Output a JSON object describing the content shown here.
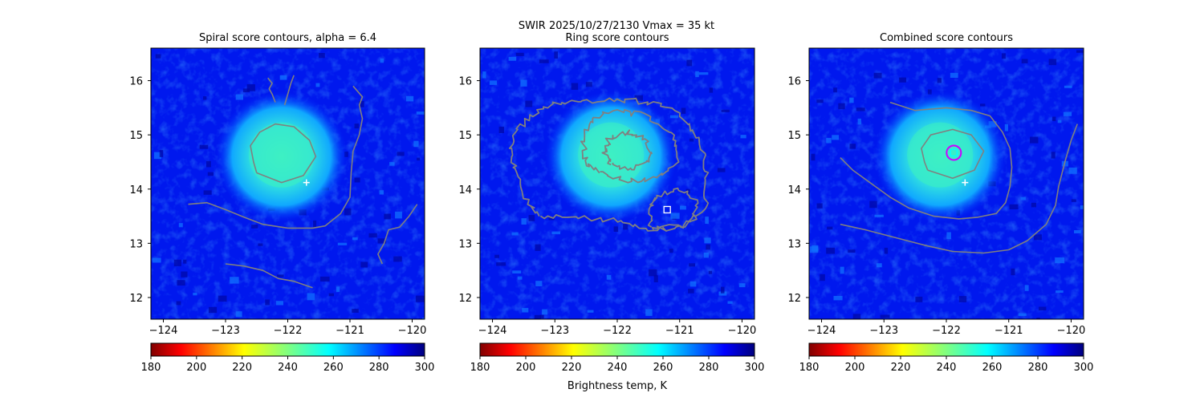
{
  "figure": {
    "suptitle_line1": "SWIR  2025/10/27/2130    Vmax = 35 kt",
    "colorbar_label": "Brightness temp, K"
  },
  "colors": {
    "contour": "#808080",
    "marker_square": "#ffffff",
    "marker_plus": "#ffffff",
    "combined_circle": "#cc00ff",
    "combined_square": "#00ffff"
  },
  "chart_data": [
    {
      "type": "heatmap",
      "title": "Spiral score contours, alpha =  6.4",
      "xlim": [
        -124.2,
        -119.8
      ],
      "ylim": [
        11.6,
        16.6
      ],
      "xticks": [
        -124,
        -123,
        -122,
        -121,
        -120
      ],
      "yticks": [
        12,
        13,
        14,
        15,
        16
      ],
      "colorbar": {
        "cmap": "jet_r",
        "range": [
          180,
          300
        ],
        "ticks": [
          180,
          200,
          220,
          240,
          260,
          280,
          300
        ]
      },
      "cloud_center": [
        -122.1,
        14.6
      ],
      "markers": [
        {
          "kind": "plus",
          "lon": -121.7,
          "lat": 14.12
        }
      ],
      "contours": [
        {
          "points": [
            [
              -122.5,
              14.3
            ],
            [
              -122.1,
              14.12
            ],
            [
              -121.75,
              14.25
            ],
            [
              -121.55,
              14.6
            ],
            [
              -121.65,
              14.9
            ],
            [
              -121.9,
              15.15
            ],
            [
              -122.2,
              15.2
            ],
            [
              -122.45,
              15.05
            ],
            [
              -122.6,
              14.8
            ],
            [
              -122.55,
              14.5
            ],
            [
              -122.5,
              14.3
            ]
          ]
        },
        {
          "points": [
            [
              -123.6,
              13.72
            ],
            [
              -123.3,
              13.75
            ],
            [
              -123.0,
              13.62
            ],
            [
              -122.7,
              13.48
            ],
            [
              -122.4,
              13.35
            ],
            [
              -122.0,
              13.28
            ],
            [
              -121.6,
              13.28
            ],
            [
              -121.4,
              13.32
            ],
            [
              -121.15,
              13.55
            ],
            [
              -121.0,
              13.85
            ],
            [
              -120.98,
              14.3
            ],
            [
              -120.95,
              14.7
            ],
            [
              -120.85,
              15.0
            ],
            [
              -120.8,
              15.3
            ],
            [
              -120.85,
              15.55
            ],
            [
              -120.8,
              15.7
            ],
            [
              -120.95,
              15.9
            ]
          ]
        },
        {
          "points": [
            [
              -122.2,
              15.6
            ],
            [
              -122.25,
              15.75
            ],
            [
              -122.3,
              15.85
            ],
            [
              -122.25,
              15.95
            ],
            [
              -122.32,
              16.05
            ]
          ]
        },
        {
          "points": [
            [
              -122.05,
              15.55
            ],
            [
              -122.0,
              15.75
            ],
            [
              -121.95,
              15.95
            ],
            [
              -121.9,
              16.1
            ]
          ]
        },
        {
          "points": [
            [
              -120.48,
              12.62
            ],
            [
              -120.55,
              12.8
            ],
            [
              -120.45,
              13.0
            ],
            [
              -120.38,
              13.25
            ],
            [
              -120.2,
              13.3
            ],
            [
              -120.05,
              13.5
            ],
            [
              -119.92,
              13.72
            ]
          ]
        },
        {
          "points": [
            [
              -123.0,
              12.62
            ],
            [
              -122.7,
              12.58
            ],
            [
              -122.4,
              12.5
            ],
            [
              -122.15,
              12.35
            ],
            [
              -121.9,
              12.3
            ],
            [
              -121.6,
              12.18
            ]
          ]
        }
      ]
    },
    {
      "type": "heatmap",
      "title": "Ring score contours",
      "xlim": [
        -124.2,
        -119.8
      ],
      "ylim": [
        11.6,
        16.6
      ],
      "xticks": [
        -124,
        -123,
        -122,
        -121,
        -120
      ],
      "yticks": [
        12,
        13,
        14,
        15,
        16
      ],
      "colorbar": {
        "cmap": "jet_r",
        "range": [
          180,
          300
        ],
        "ticks": [
          180,
          200,
          220,
          240,
          260,
          280,
          300
        ]
      },
      "cloud_center": [
        -122.1,
        14.6
      ],
      "markers": [
        {
          "kind": "square",
          "lon": -121.2,
          "lat": 13.62
        }
      ],
      "contours": [
        {
          "jagged": true,
          "points": [
            [
              -123.25,
              13.5
            ],
            [
              -122.8,
              13.5
            ],
            [
              -122.0,
              13.42
            ],
            [
              -121.5,
              13.25
            ],
            [
              -120.9,
              13.35
            ],
            [
              -120.6,
              13.6
            ],
            [
              -120.55,
              14.2
            ],
            [
              -120.65,
              14.8
            ],
            [
              -120.9,
              15.3
            ],
            [
              -121.4,
              15.6
            ],
            [
              -122.0,
              15.65
            ],
            [
              -122.6,
              15.6
            ],
            [
              -123.05,
              15.55
            ],
            [
              -123.45,
              15.3
            ],
            [
              -123.7,
              14.9
            ],
            [
              -123.65,
              14.4
            ],
            [
              -123.5,
              13.9
            ],
            [
              -123.25,
              13.5
            ]
          ]
        },
        {
          "jagged": true,
          "points": [
            [
              -122.3,
              14.3
            ],
            [
              -121.8,
              14.15
            ],
            [
              -121.35,
              14.2
            ],
            [
              -121.05,
              14.55
            ],
            [
              -121.1,
              15.0
            ],
            [
              -121.5,
              15.35
            ],
            [
              -122.0,
              15.45
            ],
            [
              -122.4,
              15.3
            ],
            [
              -122.55,
              14.9
            ],
            [
              -122.5,
              14.5
            ],
            [
              -122.3,
              14.3
            ]
          ]
        },
        {
          "jagged": true,
          "points": [
            [
              -122.1,
              14.45
            ],
            [
              -121.75,
              14.35
            ],
            [
              -121.45,
              14.55
            ],
            [
              -121.55,
              14.9
            ],
            [
              -121.85,
              15.05
            ],
            [
              -122.15,
              14.9
            ],
            [
              -122.2,
              14.65
            ],
            [
              -122.1,
              14.45
            ]
          ]
        },
        {
          "jagged": true,
          "points": [
            [
              -121.45,
              13.3
            ],
            [
              -121.1,
              13.25
            ],
            [
              -120.75,
              13.45
            ],
            [
              -120.75,
              13.8
            ],
            [
              -121.0,
              14.0
            ],
            [
              -121.35,
              13.9
            ],
            [
              -121.5,
              13.6
            ],
            [
              -121.45,
              13.3
            ]
          ]
        }
      ]
    },
    {
      "type": "heatmap",
      "title": "Combined score contours",
      "xlim": [
        -124.2,
        -119.8
      ],
      "ylim": [
        11.6,
        16.6
      ],
      "xticks": [
        -124,
        -123,
        -122,
        -121,
        -120
      ],
      "yticks": [
        12,
        13,
        14,
        15,
        16
      ],
      "colorbar": {
        "cmap": "jet_r",
        "range": [
          180,
          300
        ],
        "ticks": [
          180,
          200,
          220,
          240,
          260,
          280,
          300
        ]
      },
      "cloud_center": [
        -122.1,
        14.6
      ],
      "markers": [
        {
          "kind": "plus",
          "lon": -121.7,
          "lat": 14.12
        },
        {
          "kind": "circle",
          "lon": -121.88,
          "lat": 14.67
        },
        {
          "kind": "square",
          "lon": -121.88,
          "lat": 14.67
        }
      ],
      "contours": [
        {
          "points": [
            [
              -122.3,
              14.35
            ],
            [
              -121.9,
              14.2
            ],
            [
              -121.55,
              14.35
            ],
            [
              -121.4,
              14.7
            ],
            [
              -121.6,
              15.0
            ],
            [
              -121.9,
              15.1
            ],
            [
              -122.25,
              15.0
            ],
            [
              -122.4,
              14.75
            ],
            [
              -122.35,
              14.5
            ],
            [
              -122.3,
              14.35
            ]
          ]
        },
        {
          "points": [
            [
              -123.7,
              14.58
            ],
            [
              -123.5,
              14.35
            ],
            [
              -123.2,
              14.1
            ],
            [
              -122.9,
              13.85
            ],
            [
              -122.6,
              13.65
            ],
            [
              -122.2,
              13.5
            ],
            [
              -121.8,
              13.45
            ],
            [
              -121.5,
              13.48
            ],
            [
              -121.2,
              13.55
            ],
            [
              -121.05,
              13.75
            ],
            [
              -120.98,
              14.05
            ],
            [
              -120.95,
              14.4
            ],
            [
              -120.98,
              14.75
            ],
            [
              -121.1,
              15.05
            ],
            [
              -121.3,
              15.35
            ],
            [
              -121.6,
              15.45
            ],
            [
              -122.0,
              15.5
            ],
            [
              -122.5,
              15.45
            ],
            [
              -122.9,
              15.6
            ]
          ]
        },
        {
          "points": [
            [
              -123.7,
              13.35
            ],
            [
              -123.3,
              13.25
            ],
            [
              -122.8,
              13.1
            ],
            [
              -122.3,
              12.95
            ],
            [
              -121.9,
              12.85
            ],
            [
              -121.4,
              12.82
            ],
            [
              -121.0,
              12.88
            ],
            [
              -120.7,
              13.05
            ],
            [
              -120.4,
              13.35
            ],
            [
              -120.25,
              13.7
            ],
            [
              -120.2,
              14.05
            ],
            [
              -120.1,
              14.5
            ],
            [
              -120.0,
              14.9
            ],
            [
              -119.9,
              15.2
            ]
          ]
        }
      ]
    }
  ]
}
